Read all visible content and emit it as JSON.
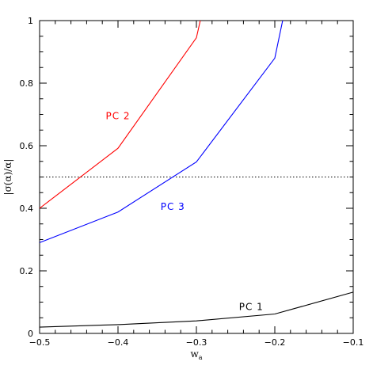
{
  "chart_data": {
    "type": "line",
    "title": "",
    "xlabel": "w_a",
    "xlabel_main": "w",
    "xlabel_sub": "a",
    "ylabel": "|σ(α)/α|",
    "xlim": [
      -0.5,
      -0.1
    ],
    "ylim": [
      0,
      1
    ],
    "x_ticks": [
      -0.5,
      -0.4,
      -0.3,
      -0.2,
      -0.1
    ],
    "x_tick_labels": [
      "−0.5",
      "−0.4",
      "−0.3",
      "−0.2",
      "−0.1"
    ],
    "y_ticks": [
      0,
      0.2,
      0.4,
      0.6,
      0.8,
      1
    ],
    "y_tick_labels": [
      "0",
      "0.2",
      "0.4",
      "0.6",
      "0.8",
      "1"
    ],
    "grid": false,
    "reference_line": {
      "y": 0.5,
      "style": "dotted",
      "color": "#000000"
    },
    "series": [
      {
        "name": "PC 1",
        "color": "#000000",
        "label_at": {
          "x": -0.23,
          "y": 0.075
        },
        "x": [
          -0.5,
          -0.4,
          -0.3,
          -0.2,
          -0.1
        ],
        "y": [
          0.02,
          0.028,
          0.04,
          0.062,
          0.132
        ]
      },
      {
        "name": "PC 2",
        "color": "#ff0000",
        "label_at": {
          "x": -0.4,
          "y": 0.685
        },
        "x": [
          -0.5,
          -0.4,
          -0.3,
          -0.295
        ],
        "y": [
          0.4,
          0.592,
          0.945,
          1.0
        ]
      },
      {
        "name": "PC 3",
        "color": "#0000ff",
        "label_at": {
          "x": -0.33,
          "y": 0.395
        },
        "x": [
          -0.5,
          -0.4,
          -0.3,
          -0.2,
          -0.19
        ],
        "y": [
          0.29,
          0.388,
          0.548,
          0.88,
          1.0
        ]
      }
    ]
  }
}
